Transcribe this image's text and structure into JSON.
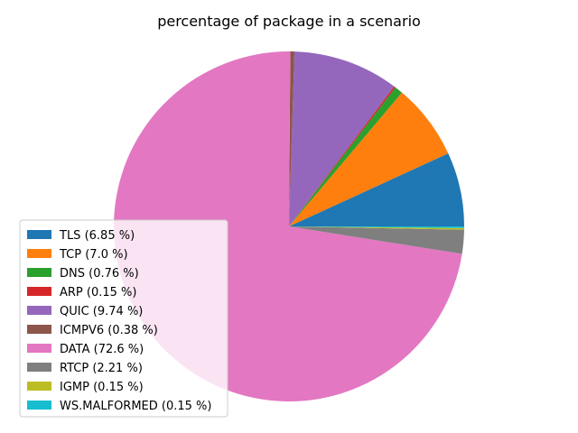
{
  "chart_data": {
    "type": "pie",
    "title": "percentage of package in a scenario",
    "start_angle_deg": 0,
    "direction": "counterclockwise",
    "legend_position": "lower-left",
    "series": [
      {
        "name": "TLS",
        "label": "TLS (6.85 %)",
        "value": 6.85,
        "color": "#1f77b4"
      },
      {
        "name": "TCP",
        "label": "TCP (7.0 %)",
        "value": 7.0,
        "color": "#ff7f0e"
      },
      {
        "name": "DNS",
        "label": "DNS (0.76 %)",
        "value": 0.76,
        "color": "#2ca02c"
      },
      {
        "name": "ARP",
        "label": "ARP (0.15 %)",
        "value": 0.15,
        "color": "#d62728"
      },
      {
        "name": "QUIC",
        "label": "QUIC (9.74 %)",
        "value": 9.74,
        "color": "#9467bd"
      },
      {
        "name": "ICMPV6",
        "label": "ICMPV6 (0.38 %)",
        "value": 0.38,
        "color": "#8c564b"
      },
      {
        "name": "DATA",
        "label": "DATA (72.6 %)",
        "value": 72.6,
        "color": "#e377c2"
      },
      {
        "name": "RTCP",
        "label": "RTCP (2.21 %)",
        "value": 2.21,
        "color": "#7f7f7f"
      },
      {
        "name": "IGMP",
        "label": "IGMP (0.15 %)",
        "value": 0.15,
        "color": "#bcbd22"
      },
      {
        "name": "WS.MALFORMED",
        "label": "WS.MALFORMED (0.15 %)",
        "value": 0.15,
        "color": "#17becf"
      }
    ]
  }
}
